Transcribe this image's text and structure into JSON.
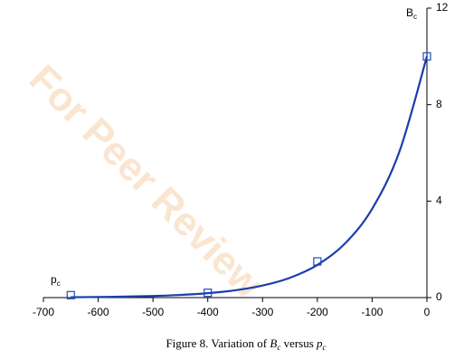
{
  "chart_data": {
    "type": "scatter",
    "watermark": "For Peer Review",
    "caption": [
      "Figure 8. Variation of ",
      "B",
      "c",
      " versus ",
      "p",
      "c"
    ],
    "y_label": {
      "main": "B",
      "sub": "c"
    },
    "x_label": {
      "main": "p",
      "sub": "c"
    },
    "xlim": [
      -700,
      0
    ],
    "xticks": [
      -700,
      -600,
      -500,
      -400,
      -300,
      -200,
      -100,
      0
    ],
    "ylim": [
      0,
      12
    ],
    "yticks": [
      0,
      4,
      8,
      12
    ],
    "series": [
      {
        "style": "markers",
        "color": "#1f4fbf",
        "x": [
          -650,
          -400,
          -200,
          0
        ],
        "values": [
          0.1,
          0.2,
          1.5,
          10
        ]
      },
      {
        "style": "line",
        "color": "#1a3db0",
        "x": [
          -650,
          -600,
          -550,
          -500,
          -450,
          -400,
          -350,
          -300,
          -250,
          -200,
          -150,
          -100,
          -50,
          0
        ],
        "values": [
          0.015,
          0.025,
          0.041,
          0.067,
          0.111,
          0.183,
          0.302,
          0.498,
          0.821,
          1.353,
          2.231,
          3.679,
          6.065,
          10
        ]
      }
    ]
  }
}
